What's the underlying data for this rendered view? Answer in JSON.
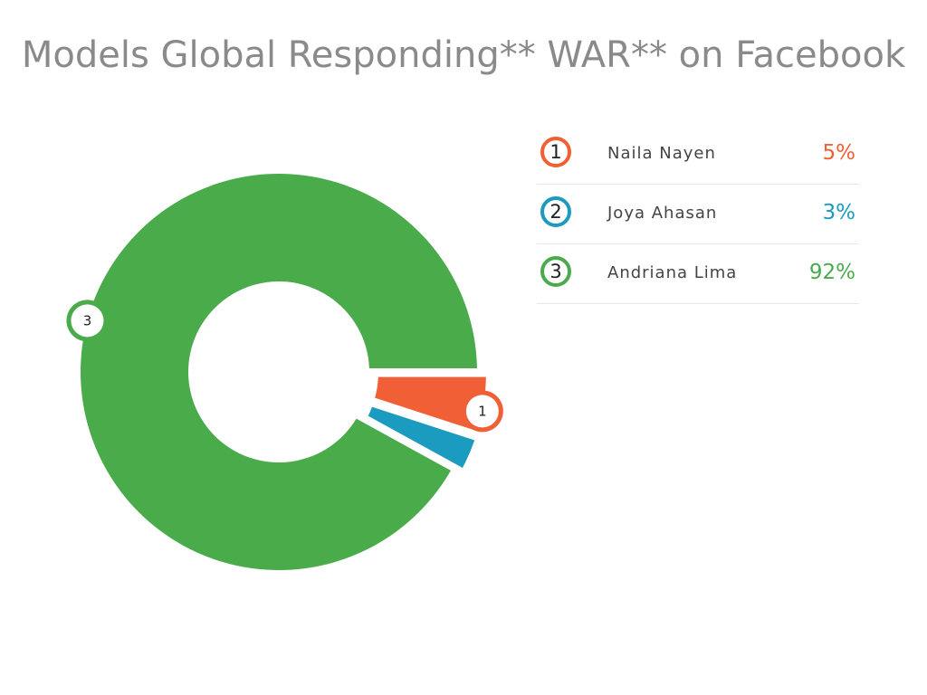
{
  "title": "Models Global Responding** WAR** on Facebook",
  "chart_data": {
    "type": "pie",
    "donut": true,
    "title": "Models Global Responding** WAR** on Facebook",
    "slices": [
      {
        "label": "1",
        "name": "Naila Nayen",
        "value": 5,
        "value_label": "5%",
        "color": "#f05f35"
      },
      {
        "label": "2",
        "name": "Joya Ahasan",
        "value": 3,
        "value_label": "3%",
        "color": "#1a9bbf"
      },
      {
        "label": "3",
        "name": "Andriana Lima",
        "value": 92,
        "value_label": "92%",
        "color": "#4aab4a"
      }
    ],
    "legend_position": "right"
  }
}
